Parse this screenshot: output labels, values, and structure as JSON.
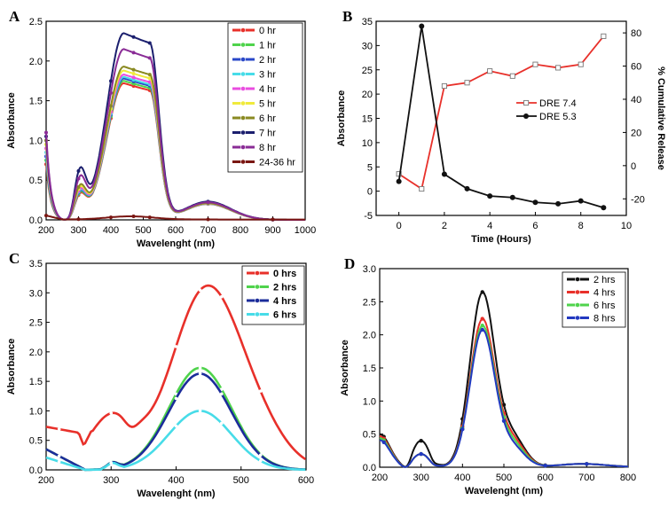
{
  "chart_data": [
    {
      "panel": "A",
      "type": "line",
      "xlabel": "Wavelenght (nm)",
      "ylabel": "Absorbance",
      "xlim": [
        200,
        1000
      ],
      "ylim": [
        0,
        2.5
      ],
      "xticks": [
        200,
        300,
        400,
        500,
        600,
        700,
        800,
        900,
        1000
      ],
      "yticks": [
        0.0,
        0.5,
        1.0,
        1.5,
        2.0,
        2.5
      ],
      "ytick_labels": [
        "0.0",
        "0.5",
        "1.0",
        "1.5",
        "2.0",
        "2.5"
      ],
      "legend_position": "top-right",
      "series": [
        {
          "name": "0 hr",
          "color": "#e8302a",
          "marker": "circle",
          "peak": 1.72
        },
        {
          "name": "1 hr",
          "color": "#4fd34c",
          "marker": "circle",
          "peak": 1.75
        },
        {
          "name": "2 hr",
          "color": "#2a48c8",
          "marker": "circle",
          "peak": 1.78
        },
        {
          "name": "3 hr",
          "color": "#47dce8",
          "marker": "circle",
          "peak": 1.8
        },
        {
          "name": "4 hr",
          "color": "#e94de0",
          "marker": "circle",
          "peak": 1.83
        },
        {
          "name": "5 hr",
          "color": "#f0ea3c",
          "marker": "circle",
          "peak": 1.88
        },
        {
          "name": "6 hr",
          "color": "#8a8a22",
          "marker": "circle",
          "peak": 1.93
        },
        {
          "name": "7 hr",
          "color": "#1b1f6e",
          "marker": "circle",
          "peak": 2.35
        },
        {
          "name": "8 hr",
          "color": "#8a2c96",
          "marker": "circle",
          "peak": 2.15
        },
        {
          "name": "24-36 hr",
          "color": "#7a1612",
          "marker": "circle",
          "peak": 0.04
        }
      ]
    },
    {
      "panel": "B",
      "type": "line",
      "xlabel": "Time (Hours)",
      "ylabel": "Absorbance",
      "y2label": "% Cumulative Release",
      "xlim": [
        -1,
        10
      ],
      "ylim": [
        -5,
        35
      ],
      "y2lim": [
        -30,
        87
      ],
      "xticks": [
        0,
        2,
        4,
        6,
        8,
        10
      ],
      "yticks": [
        -5,
        0,
        5,
        10,
        15,
        20,
        25,
        30,
        35
      ],
      "y2ticks": [
        -20,
        0,
        20,
        40,
        60,
        80
      ],
      "legend_position": "center-right",
      "series": [
        {
          "name": "DRE 7.4",
          "color": "#e8302a",
          "marker": "open-square",
          "x": [
            0,
            1,
            2,
            3,
            4,
            5,
            6,
            7,
            8,
            9
          ],
          "y": [
            -5,
            -14,
            48,
            50,
            57,
            54,
            61,
            59,
            61,
            78
          ]
        },
        {
          "name": "DRE 5.3",
          "color": "#111111",
          "marker": "filled-circle",
          "x": [
            0,
            1,
            2,
            3,
            4,
            5,
            6,
            7,
            8,
            9
          ],
          "y": [
            2,
            34,
            3.5,
            0.5,
            -1,
            -1.3,
            -2.3,
            -2.6,
            -2,
            -3.4
          ]
        }
      ]
    },
    {
      "panel": "C",
      "type": "line",
      "xlabel": "Wavelenght (nm)",
      "ylabel": "Absorbance",
      "xlim": [
        200,
        600
      ],
      "ylim": [
        0,
        3.5
      ],
      "xticks": [
        200,
        300,
        400,
        500,
        600
      ],
      "yticks": [
        0.0,
        0.5,
        1.0,
        1.5,
        2.0,
        2.5,
        3.0,
        3.5
      ],
      "ytick_labels": [
        "0.0",
        "0.5",
        "1.0",
        "1.5",
        "2.0",
        "2.5",
        "3.0",
        "3.5"
      ],
      "legend_position": "top-right",
      "series": [
        {
          "name": "0 hrs",
          "color": "#e8302a",
          "peak": 3.07
        },
        {
          "name": "2 hrs",
          "color": "#4fd34c",
          "peak": 1.73
        },
        {
          "name": "4 hrs",
          "color": "#1b2c9a",
          "peak": 1.63
        },
        {
          "name": "6 hrs",
          "color": "#47dce8",
          "peak": 1.0
        }
      ]
    },
    {
      "panel": "D",
      "type": "line",
      "xlabel": "Wavelenght (nm)",
      "ylabel": "Absorbance",
      "xlim": [
        200,
        800
      ],
      "ylim": [
        0,
        3.0
      ],
      "xticks": [
        200,
        300,
        400,
        500,
        600,
        700,
        800
      ],
      "yticks": [
        0.0,
        0.5,
        1.0,
        1.5,
        2.0,
        2.5,
        3.0
      ],
      "ytick_labels": [
        "0.0",
        "0.5",
        "1.0",
        "1.5",
        "2.0",
        "2.5",
        "3.0"
      ],
      "legend_position": "top-right",
      "series": [
        {
          "name": "2 hrs",
          "color": "#111111",
          "peak": 2.62
        },
        {
          "name": "4 hrs",
          "color": "#e8302a",
          "peak": 2.22
        },
        {
          "name": "6 hrs",
          "color": "#4fd34c",
          "peak": 2.12
        },
        {
          "name": "8 hrs",
          "color": "#2238c0",
          "peak": 2.06
        }
      ]
    }
  ]
}
